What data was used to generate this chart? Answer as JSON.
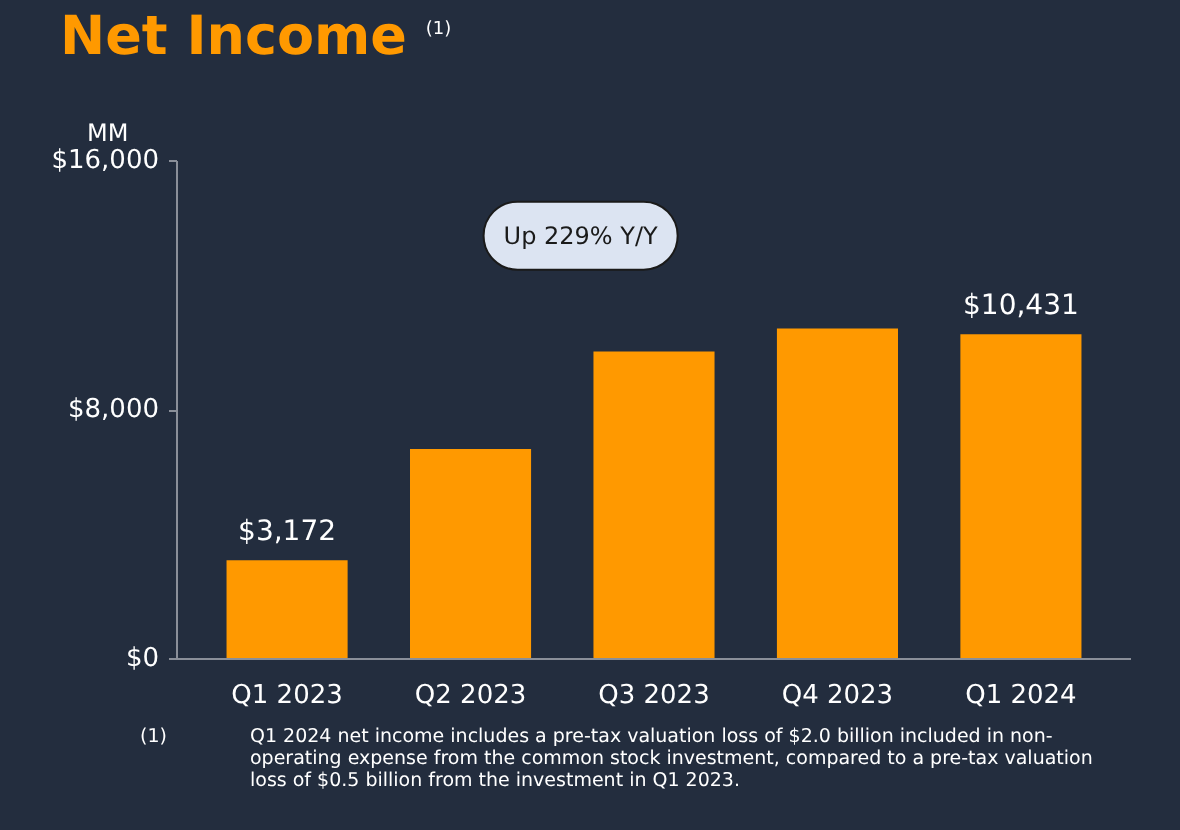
{
  "chart_data": {
    "type": "bar",
    "title": "Net Income",
    "ylabel": "MM",
    "categories": [
      "Q1 2023",
      "Q2 2023",
      "Q3 2023",
      "Q4 2023",
      "Q1 2024"
    ],
    "values": [
      3172,
      6750,
      9880,
      10620,
      10431
    ],
    "value_labels": [
      "$3,172",
      null,
      null,
      null,
      "$10,431"
    ],
    "color": "#ff9900",
    "ylim": [
      0,
      16000
    ],
    "yticks": [
      {
        "value": 0,
        "label": "$0"
      },
      {
        "value": 8000,
        "label": "$8,000"
      },
      {
        "value": 16000,
        "label": "$16,000"
      }
    ],
    "grid": false,
    "annotations": [
      "Up 229% Y/Y",
      "(1)",
      "(1)",
      "Q1 2024 net income includes a pre-tax valuation loss of $2.0 billion included in non-operating expense from the common stock investment, compared to a pre-tax valuation loss of $0.5 billion from the investment in Q1 2023."
    ]
  }
}
